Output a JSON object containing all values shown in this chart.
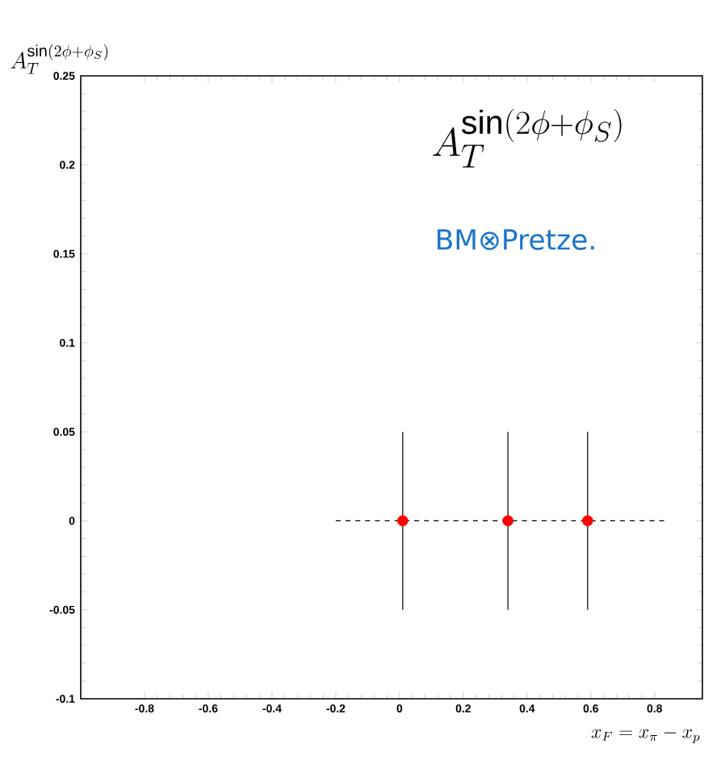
{
  "chart_data": {
    "type": "scatter",
    "ylabel": "A_T^{\\sin(2\\phi+\\phi_S)}",
    "xlabel": "x_F = x_\\pi - x_p",
    "annotations": [
      "A_T^{\\sin(2\\phi+\\phi_S)}",
      "BM⊗Pretze."
    ],
    "xlim": [
      -1,
      0.95
    ],
    "ylim": [
      -0.1,
      0.25
    ],
    "xticks": [
      -0.8,
      -0.6,
      -0.4,
      -0.2,
      0,
      0.2,
      0.4,
      0.6,
      0.8
    ],
    "yticks": [
      -0.1,
      -0.05,
      0,
      0.05,
      0.1,
      0.15,
      0.2,
      0.25
    ],
    "grid": false,
    "series": [
      {
        "color": "#ff0000",
        "marker": "circle",
        "x": [
          0.01,
          0.34,
          0.59
        ],
        "values": [
          0,
          0,
          0
        ],
        "errors": [
          0.05,
          0.05,
          0.05
        ]
      },
      {
        "type": "line",
        "color": "#000000",
        "line_style": "dashed",
        "marker": "none",
        "x": [
          -0.2,
          0.83
        ],
        "values": [
          0,
          0
        ]
      }
    ]
  }
}
